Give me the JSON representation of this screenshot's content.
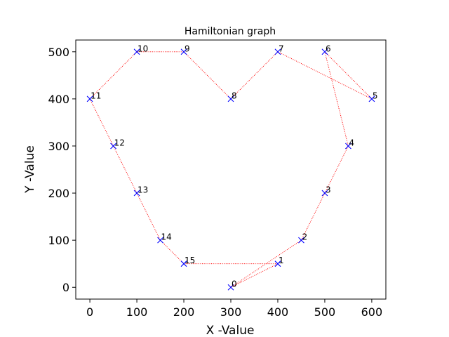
{
  "chart_data": {
    "type": "scatter",
    "title": "Hamiltonian graph",
    "xlabel": "X -Value",
    "ylabel": "Y -Value",
    "xlim": [
      -30,
      630
    ],
    "ylim": [
      -25,
      525
    ],
    "xticks": [
      0,
      100,
      200,
      300,
      400,
      500,
      600
    ],
    "yticks": [
      0,
      100,
      200,
      300,
      400,
      500
    ],
    "grid": false,
    "marker": "x",
    "marker_color": "#0000ff",
    "line_color": "#ff0000",
    "line_style": "dotted",
    "points": [
      {
        "label": "0",
        "x": 300,
        "y": 0
      },
      {
        "label": "1",
        "x": 400,
        "y": 50
      },
      {
        "label": "2",
        "x": 450,
        "y": 100
      },
      {
        "label": "3",
        "x": 500,
        "y": 200
      },
      {
        "label": "4",
        "x": 550,
        "y": 300
      },
      {
        "label": "5",
        "x": 600,
        "y": 400
      },
      {
        "label": "6",
        "x": 500,
        "y": 500
      },
      {
        "label": "7",
        "x": 400,
        "y": 500
      },
      {
        "label": "8",
        "x": 300,
        "y": 400
      },
      {
        "label": "9",
        "x": 200,
        "y": 500
      },
      {
        "label": "10",
        "x": 100,
        "y": 500
      },
      {
        "label": "11",
        "x": 0,
        "y": 400
      },
      {
        "label": "12",
        "x": 50,
        "y": 300
      },
      {
        "label": "13",
        "x": 100,
        "y": 200
      },
      {
        "label": "14",
        "x": 150,
        "y": 100
      },
      {
        "label": "15",
        "x": 200,
        "y": 50
      }
    ],
    "path_order": [
      0,
      2,
      3,
      4,
      6,
      5,
      7,
      8,
      9,
      10,
      11,
      12,
      13,
      14,
      15,
      1,
      0
    ]
  }
}
